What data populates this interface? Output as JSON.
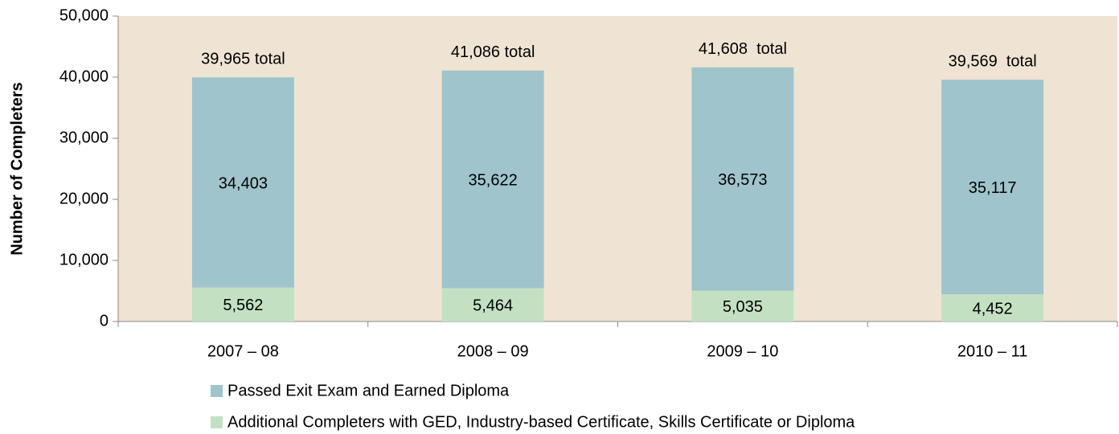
{
  "chart_data": {
    "type": "stacked_bar",
    "y_label": "Number of Completers",
    "categories": [
      "2007 – 08",
      "2008 – 09",
      "2009 – 10",
      "2010 – 11"
    ],
    "series": [
      {
        "name": "Passed Exit Exam and Earned Diploma",
        "color": "#9fc4cb",
        "values": [
          34403,
          35622,
          36573,
          35117
        ],
        "value_labels": [
          "34,403",
          "35,622",
          "36,573",
          "35,117"
        ]
      },
      {
        "name": "Additional Completers with GED, Industry-based Certificate, Skills Certificate or Diploma",
        "color": "#c3e0c3",
        "values": [
          5562,
          5464,
          5035,
          4452
        ],
        "value_labels": [
          "5,562",
          "5,464",
          "5,035",
          "4,452"
        ]
      }
    ],
    "total_labels": [
      "39,965 total",
      "41,086 total",
      "41,608  total",
      "39,569  total"
    ],
    "ylim": [
      0,
      50000
    ],
    "yticks": [
      0,
      {
        "value": 10000,
        "label": "10,000"
      },
      {
        "value": 20000,
        "label": "20,000"
      },
      {
        "value": 30000,
        "label": "30,000"
      },
      {
        "value": 40000,
        "label": "40,000"
      },
      {
        "value": 50000,
        "label": "50,000"
      }
    ],
    "plot_background": "#efe4d4"
  }
}
